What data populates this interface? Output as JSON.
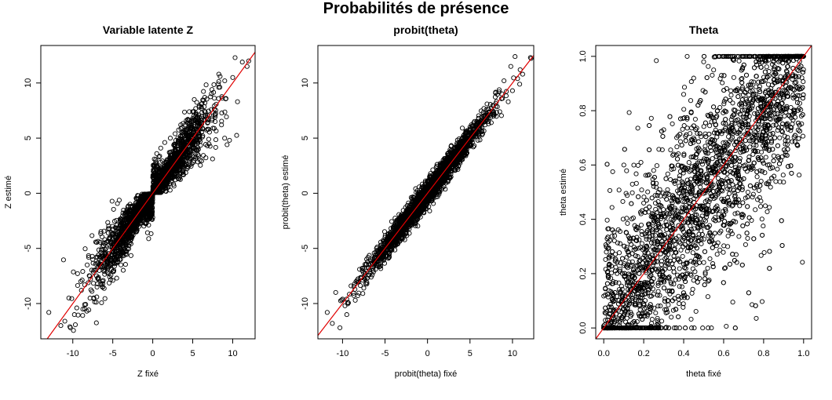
{
  "figure": {
    "title": "Probabilités de présence"
  },
  "colors": {
    "points": "#000000",
    "reference_line": "#e00000",
    "axes": "#000000"
  },
  "chart_data": [
    {
      "type": "scatter",
      "title": "Variable latente Z",
      "xlabel": "Z fixé",
      "ylabel": "Z estimé",
      "xlim": [
        -14,
        12.8
      ],
      "ylim": [
        -13.2,
        13.4
      ],
      "xticks": [
        -10,
        -5,
        0,
        5,
        10
      ],
      "yticks": [
        -10,
        -5,
        0,
        5,
        10
      ],
      "reference_line": {
        "intercept": 0,
        "slope": 1
      },
      "sample_points": [
        [
          -13.0,
          -10.8
        ],
        [
          -11.5,
          -12.0
        ],
        [
          -11.0,
          -11.6
        ],
        [
          -10.3,
          -12.2
        ],
        [
          -10.5,
          -9.5
        ],
        [
          -9.8,
          -11.0
        ],
        [
          -9.5,
          -10.4
        ],
        [
          -9.0,
          -8.0
        ],
        [
          -8.5,
          -10.5
        ],
        [
          -8.2,
          -6.5
        ],
        [
          -7.6,
          -8.9
        ],
        [
          -7.5,
          -6.0
        ],
        [
          -7.0,
          -9.4
        ],
        [
          -6.8,
          -5.6
        ],
        [
          -6.2,
          -7.9
        ],
        [
          -6.0,
          -4.2
        ],
        [
          -5.5,
          -7.3
        ],
        [
          -5.2,
          -3.6
        ],
        [
          -4.8,
          -6.4
        ],
        [
          -4.5,
          -2.9
        ],
        [
          -4.0,
          -5.6
        ],
        [
          -3.8,
          -2.4
        ],
        [
          -3.5,
          -4.6
        ],
        [
          -3.0,
          -1.8
        ],
        [
          -2.8,
          -4.3
        ],
        [
          -2.5,
          -1.6
        ],
        [
          -2.0,
          -3.0
        ],
        [
          -1.5,
          -0.8
        ],
        [
          -1.2,
          -2.5
        ],
        [
          -0.9,
          -0.5
        ],
        [
          -0.6,
          -1.6
        ],
        [
          -0.3,
          -0.4
        ],
        [
          -0.1,
          -1.0
        ],
        [
          -0.2,
          -0.2
        ],
        [
          0.1,
          0.3
        ],
        [
          0.2,
          3.1
        ],
        [
          0.3,
          1.5
        ],
        [
          0.5,
          3.6
        ],
        [
          0.8,
          0.6
        ],
        [
          1.0,
          4.1
        ],
        [
          1.3,
          1.3
        ],
        [
          1.5,
          4.6
        ],
        [
          2.0,
          1.4
        ],
        [
          2.2,
          5.0
        ],
        [
          2.5,
          2.2
        ],
        [
          2.8,
          5.4
        ],
        [
          3.0,
          2.0
        ],
        [
          3.5,
          6.2
        ],
        [
          3.8,
          2.6
        ],
        [
          4.2,
          6.6
        ],
        [
          4.6,
          2.9
        ],
        [
          5.0,
          7.4
        ],
        [
          5.3,
          4.0
        ],
        [
          5.8,
          7.9
        ],
        [
          6.2,
          5.1
        ],
        [
          6.5,
          8.7
        ],
        [
          7.0,
          4.9
        ],
        [
          7.4,
          9.4
        ],
        [
          7.8,
          6.5
        ],
        [
          8.2,
          9.9
        ],
        [
          8.6,
          6.2
        ],
        [
          9.0,
          10.2
        ],
        [
          9.3,
          4.4
        ],
        [
          9.6,
          4.8
        ],
        [
          10.0,
          10.5
        ],
        [
          10.3,
          12.3
        ],
        [
          10.6,
          8.3
        ],
        [
          11.2,
          11.9
        ],
        [
          11.8,
          11.5
        ],
        [
          12.0,
          12.0
        ]
      ]
    },
    {
      "type": "scatter",
      "title": "probit(theta)",
      "xlabel": "probit(theta) fixé",
      "ylabel": "probit(theta) estimé",
      "xlim": [
        -12.9,
        12.5
      ],
      "ylim": [
        -13.2,
        13.4
      ],
      "xticks": [
        -10,
        -5,
        0,
        5,
        10
      ],
      "yticks": [
        -10,
        -5,
        0,
        5,
        10
      ],
      "reference_line": {
        "intercept": 0,
        "slope": 1
      },
      "sample_points": [
        [
          -11.8,
          -10.8
        ],
        [
          -11.2,
          -11.8
        ],
        [
          -10.8,
          -9.0
        ],
        [
          -10.3,
          -12.2
        ],
        [
          -10.0,
          -9.6
        ],
        [
          -9.5,
          -11.0
        ],
        [
          -9.0,
          -8.4
        ],
        [
          -8.5,
          -9.7
        ],
        [
          -8.0,
          -6.9
        ],
        [
          -7.5,
          -8.6
        ],
        [
          -7.0,
          -5.8
        ],
        [
          -6.5,
          -7.4
        ],
        [
          -6.0,
          -5.0
        ],
        [
          -5.5,
          -6.6
        ],
        [
          -5.0,
          -4.0
        ],
        [
          -4.5,
          -5.7
        ],
        [
          -4.0,
          -3.0
        ],
        [
          -3.5,
          -4.6
        ],
        [
          -3.0,
          -1.9
        ],
        [
          -2.5,
          -3.6
        ],
        [
          -2.0,
          -1.0
        ],
        [
          -1.5,
          -2.4
        ],
        [
          -1.0,
          -0.1
        ],
        [
          -0.5,
          -1.2
        ],
        [
          0.0,
          0.6
        ],
        [
          0.5,
          -0.3
        ],
        [
          1.0,
          1.7
        ],
        [
          1.5,
          0.6
        ],
        [
          2.0,
          2.8
        ],
        [
          2.5,
          1.4
        ],
        [
          3.0,
          3.7
        ],
        [
          3.5,
          2.3
        ],
        [
          4.0,
          4.9
        ],
        [
          4.5,
          3.4
        ],
        [
          5.0,
          6.0
        ],
        [
          5.5,
          4.3
        ],
        [
          6.0,
          6.8
        ],
        [
          6.5,
          5.4
        ],
        [
          7.0,
          8.1
        ],
        [
          7.5,
          6.4
        ],
        [
          8.0,
          9.1
        ],
        [
          8.5,
          7.4
        ],
        [
          9.0,
          10.2
        ],
        [
          9.5,
          8.3
        ],
        [
          9.8,
          11.5
        ],
        [
          10.0,
          9.3
        ],
        [
          10.3,
          12.4
        ],
        [
          10.6,
          10.4
        ],
        [
          10.9,
          11.2
        ],
        [
          11.2,
          10.8
        ]
      ]
    },
    {
      "type": "scatter",
      "title": "Theta",
      "xlabel": "theta fixé",
      "ylabel": "theta estimé",
      "xlim": [
        -0.04,
        1.04
      ],
      "ylim": [
        -0.04,
        1.04
      ],
      "xticks": [
        0.0,
        0.2,
        0.4,
        0.6,
        0.8,
        1.0
      ],
      "yticks": [
        0.0,
        0.2,
        0.4,
        0.6,
        0.8,
        1.0
      ],
      "reference_line": {
        "intercept": 0,
        "slope": 1
      },
      "sample_points": [
        [
          0.0,
          0.0
        ],
        [
          0.02,
          0.0
        ],
        [
          0.05,
          0.1
        ],
        [
          0.08,
          0.02
        ],
        [
          0.1,
          0.23
        ],
        [
          0.12,
          0.0
        ],
        [
          0.15,
          0.33
        ],
        [
          0.18,
          0.08
        ],
        [
          0.2,
          0.46
        ],
        [
          0.22,
          0.05
        ],
        [
          0.25,
          0.58
        ],
        [
          0.28,
          0.12
        ],
        [
          0.3,
          0.73
        ],
        [
          0.32,
          0.1
        ],
        [
          0.35,
          0.64
        ],
        [
          0.38,
          0.0
        ],
        [
          0.4,
          0.86
        ],
        [
          0.42,
          0.2
        ],
        [
          0.45,
          0.92
        ],
        [
          0.48,
          0.26
        ],
        [
          0.5,
          0.98
        ],
        [
          0.52,
          0.22
        ],
        [
          0.55,
          0.95
        ],
        [
          0.58,
          0.35
        ],
        [
          0.6,
          1.0
        ],
        [
          0.62,
          0.3
        ],
        [
          0.65,
          0.99
        ],
        [
          0.68,
          0.45
        ],
        [
          0.7,
          1.0
        ],
        [
          0.72,
          0.33
        ],
        [
          0.75,
          1.0
        ],
        [
          0.78,
          0.48
        ],
        [
          0.8,
          1.0
        ],
        [
          0.82,
          0.6
        ],
        [
          0.85,
          0.98
        ],
        [
          0.88,
          0.7
        ],
        [
          0.9,
          1.0
        ],
        [
          0.93,
          0.78
        ],
        [
          0.96,
          1.0
        ],
        [
          1.0,
          1.0
        ]
      ]
    }
  ]
}
